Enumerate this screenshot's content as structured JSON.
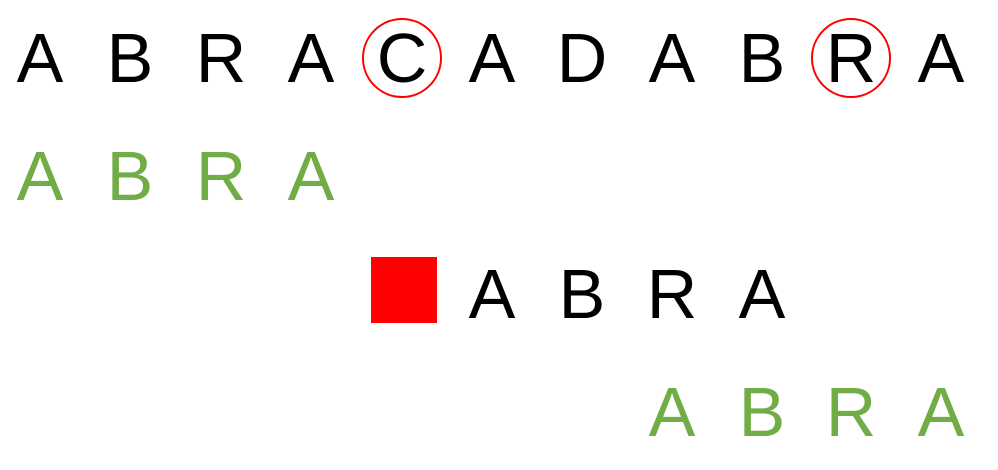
{
  "text": {
    "letters": [
      "A",
      "B",
      "R",
      "A",
      "C",
      "A",
      "D",
      "A",
      "B",
      "R",
      "A"
    ],
    "pattern_row_1": [
      "A",
      "B",
      "R",
      "A"
    ],
    "pattern_row_2": [
      "A",
      "B",
      "R",
      "A"
    ],
    "pattern_row_3": [
      "A",
      "B",
      "R",
      "A"
    ]
  },
  "marks": {
    "circled_positions_index": [
      4,
      9
    ],
    "mismatch_square": "red-square"
  },
  "colors": {
    "text": "#000000",
    "match": "#70ad47",
    "mismatch": "#ff0000",
    "background": "#ffffff"
  }
}
